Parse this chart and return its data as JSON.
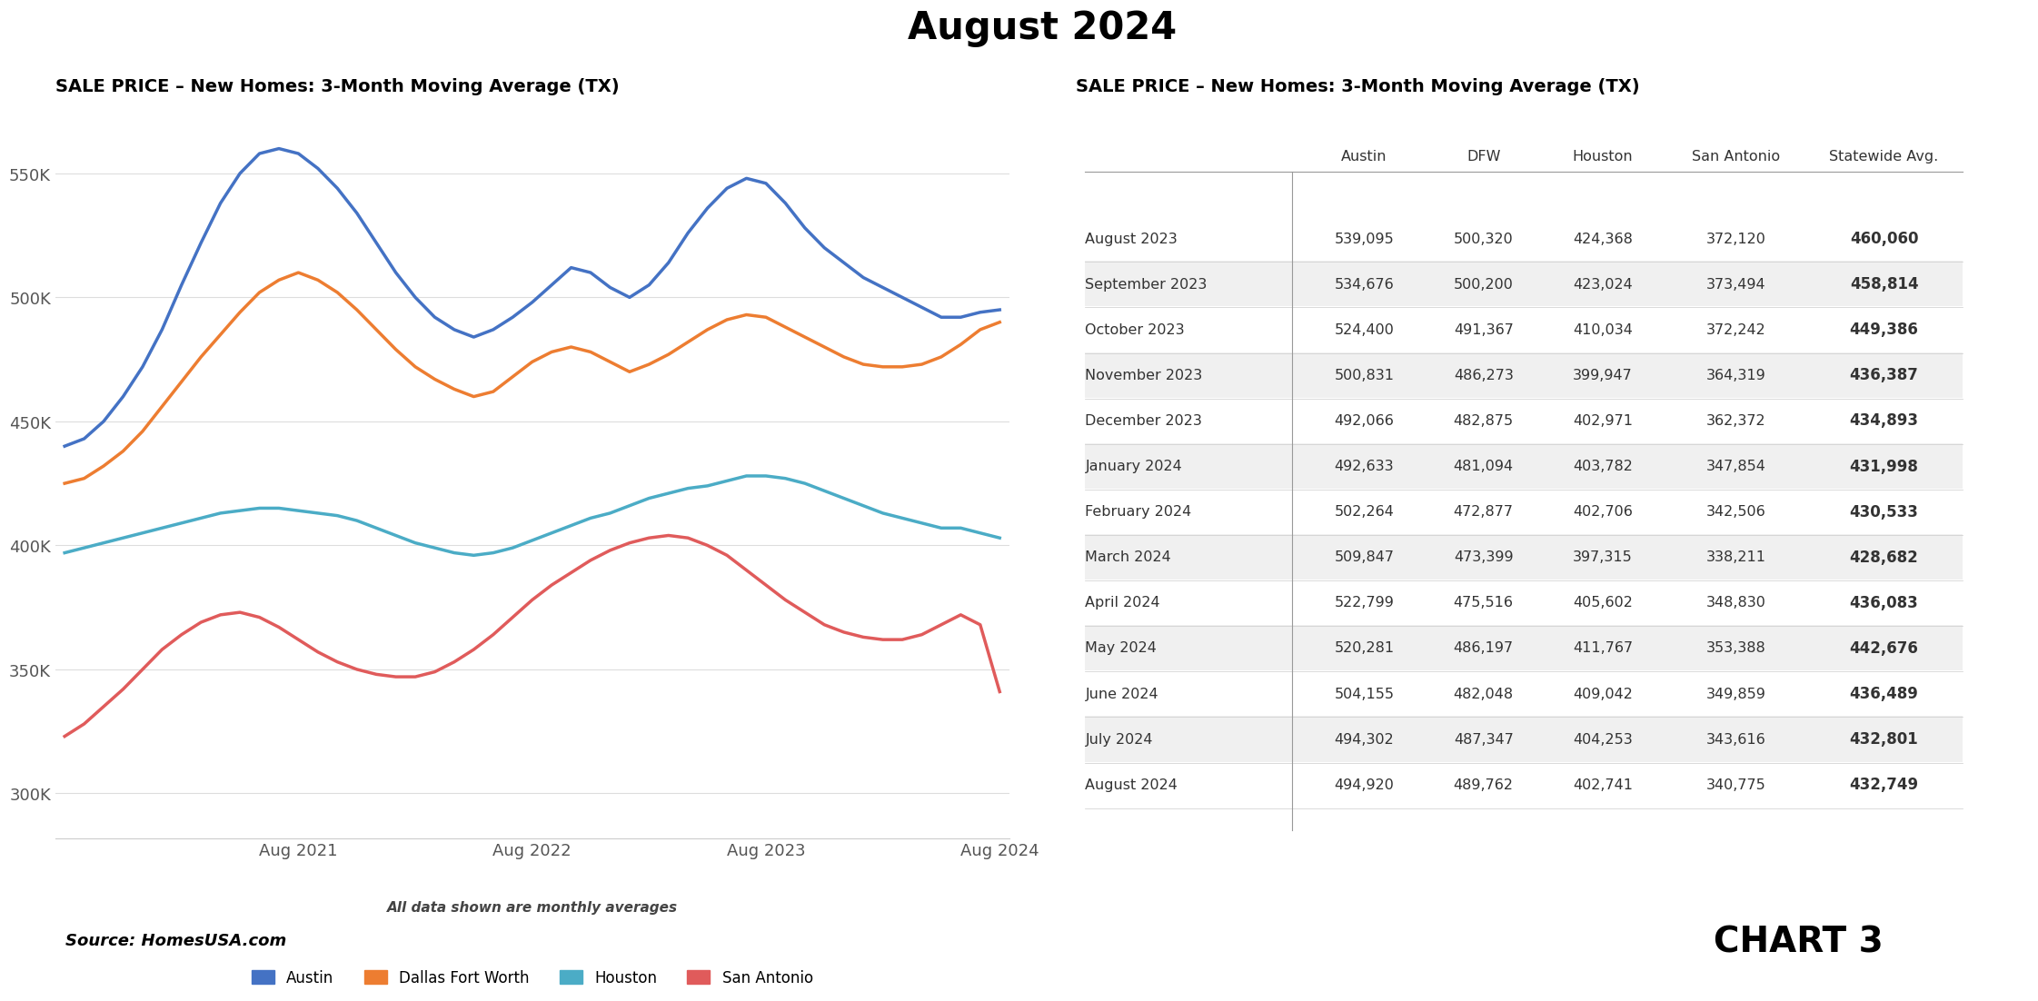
{
  "title": "August 2024",
  "left_chart_title": "SALE PRICE – New Homes: 3-Month Moving Average (TX)",
  "right_table_title": "SALE PRICE – New Homes: 3-Month Moving Average (TX)",
  "subtitle_note": "All data shown are monthly averages",
  "source": "Source: HomesUSA.com",
  "chart3_label": "CHART 3",
  "colors": {
    "Austin": "#4472C4",
    "DFW": "#ED7D31",
    "Houston": "#4BACC6",
    "SanAntonio": "#E05B5B"
  },
  "legend_labels": [
    "Austin",
    "Dallas Fort Worth",
    "Houston",
    "San Antonio"
  ],
  "x_tick_labels": [
    "Aug 2021",
    "Aug 2022",
    "Aug 2023",
    "Aug 2024"
  ],
  "y_ticks": [
    300000,
    350000,
    400000,
    450000,
    500000,
    550000
  ],
  "ylim": [
    282000,
    578000
  ],
  "table_headers": [
    "",
    "Austin",
    "DFW",
    "Houston",
    "San Antonio",
    "Statewide Avg."
  ],
  "table_rows": [
    [
      "August 2023",
      539095,
      500320,
      424368,
      372120,
      460060
    ],
    [
      "September 2023",
      534676,
      500200,
      423024,
      373494,
      458814
    ],
    [
      "October 2023",
      524400,
      491367,
      410034,
      372242,
      449386
    ],
    [
      "November 2023",
      500831,
      486273,
      399947,
      364319,
      436387
    ],
    [
      "December 2023",
      492066,
      482875,
      402971,
      362372,
      434893
    ],
    [
      "January 2024",
      492633,
      481094,
      403782,
      347854,
      431998
    ],
    [
      "February 2024",
      502264,
      472877,
      402706,
      342506,
      430533
    ],
    [
      "March 2024",
      509847,
      473399,
      397315,
      338211,
      428682
    ],
    [
      "April 2024",
      522799,
      475516,
      405602,
      348830,
      436083
    ],
    [
      "May 2024",
      520281,
      486197,
      411767,
      353388,
      442676
    ],
    [
      "June 2024",
      504155,
      482048,
      409042,
      349859,
      436489
    ],
    [
      "July 2024",
      494302,
      487347,
      404253,
      343616,
      432801
    ],
    [
      "August 2024",
      494920,
      489762,
      402741,
      340775,
      432749
    ]
  ],
  "austin_data": [
    440000,
    443000,
    450000,
    460000,
    472000,
    487000,
    505000,
    522000,
    538000,
    550000,
    558000,
    560000,
    558000,
    552000,
    544000,
    534000,
    522000,
    510000,
    500000,
    492000,
    487000,
    484000,
    487000,
    492000,
    498000,
    505000,
    512000,
    510000,
    504000,
    500000,
    505000,
    514000,
    526000,
    536000,
    544000,
    548000,
    546000,
    538000,
    528000,
    520000,
    514000,
    508000,
    504000,
    500000,
    496000,
    492000,
    492000,
    494000,
    495000
  ],
  "dfw_data": [
    425000,
    427000,
    432000,
    438000,
    446000,
    456000,
    466000,
    476000,
    485000,
    494000,
    502000,
    507000,
    510000,
    507000,
    502000,
    495000,
    487000,
    479000,
    472000,
    467000,
    463000,
    460000,
    462000,
    468000,
    474000,
    478000,
    480000,
    478000,
    474000,
    470000,
    473000,
    477000,
    482000,
    487000,
    491000,
    493000,
    492000,
    488000,
    484000,
    480000,
    476000,
    473000,
    472000,
    472000,
    473000,
    476000,
    481000,
    487000,
    490000
  ],
  "houston_data": [
    397000,
    399000,
    401000,
    403000,
    405000,
    407000,
    409000,
    411000,
    413000,
    414000,
    415000,
    415000,
    414000,
    413000,
    412000,
    410000,
    407000,
    404000,
    401000,
    399000,
    397000,
    396000,
    397000,
    399000,
    402000,
    405000,
    408000,
    411000,
    413000,
    416000,
    419000,
    421000,
    423000,
    424000,
    426000,
    428000,
    428000,
    427000,
    425000,
    422000,
    419000,
    416000,
    413000,
    411000,
    409000,
    407000,
    407000,
    405000,
    403000
  ],
  "san_antonio_data": [
    323000,
    328000,
    335000,
    342000,
    350000,
    358000,
    364000,
    369000,
    372000,
    373000,
    371000,
    367000,
    362000,
    357000,
    353000,
    350000,
    348000,
    347000,
    347000,
    349000,
    353000,
    358000,
    364000,
    371000,
    378000,
    384000,
    389000,
    394000,
    398000,
    401000,
    403000,
    404000,
    403000,
    400000,
    396000,
    390000,
    384000,
    378000,
    373000,
    368000,
    365000,
    363000,
    362000,
    362000,
    364000,
    368000,
    372000,
    368000,
    341000
  ]
}
